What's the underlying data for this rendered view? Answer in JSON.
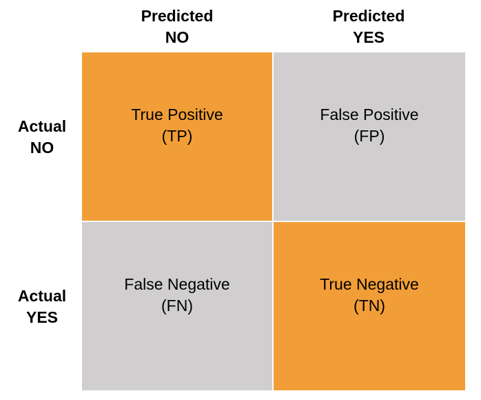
{
  "columns": [
    {
      "line1": "Predicted",
      "line2": "NO"
    },
    {
      "line1": "Predicted",
      "line2": "YES"
    }
  ],
  "rows": [
    {
      "line1": "Actual",
      "line2": "NO"
    },
    {
      "line1": "Actual",
      "line2": "YES"
    }
  ],
  "cells": [
    {
      "line1": "True Positive",
      "line2": "(TP)",
      "color": "#f29e38"
    },
    {
      "line1": "False Positive",
      "line2": "(FP)",
      "color": "#d0cece"
    },
    {
      "line1": "False Negative",
      "line2": "(FN)",
      "color": "#d0cece"
    },
    {
      "line1": "True Negative",
      "line2": "(TN)",
      "color": "#f29e38"
    }
  ]
}
